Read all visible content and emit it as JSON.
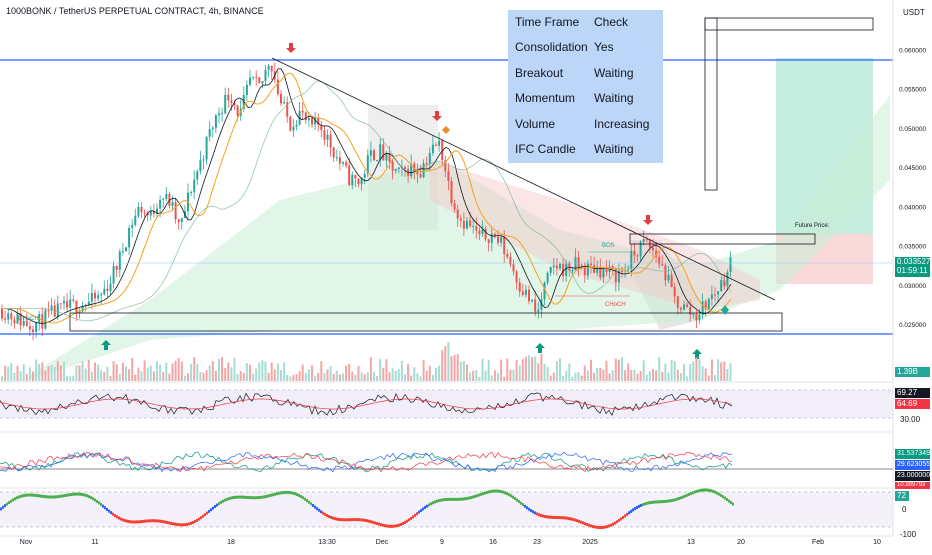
{
  "chart_title": "1000BONK / TetherUS PERPETUAL CONTRACT, 4h, BINANCE",
  "currency": "USDT",
  "chart_data": {
    "type": "candlestick",
    "symbol": "1000BONK / TetherUS PERPETUAL CONTRACT",
    "interval": "4h",
    "exchange": "BINANCE",
    "price_ticks": [
      "0.060000",
      "0.055000",
      "0.050000",
      "0.045000",
      "0.040000",
      "0.035000",
      "0.030000",
      "0.025000"
    ],
    "price_range": [
      0.0235,
      0.0635
    ],
    "time_labels": [
      "Nov",
      "11",
      "18",
      "13:30",
      "Dec",
      "9",
      "16",
      "23",
      "2025",
      "13",
      "20",
      "Feb",
      "10"
    ],
    "last_price": "0.033527",
    "countdown": "01:59:11",
    "price_path": [
      [
        0,
        0.027
      ],
      [
        10,
        0.0262
      ],
      [
        20,
        0.0255
      ],
      [
        30,
        0.025
      ],
      [
        40,
        0.0253
      ],
      [
        50,
        0.0262
      ],
      [
        60,
        0.0268
      ],
      [
        70,
        0.0272
      ],
      [
        80,
        0.0275
      ],
      [
        90,
        0.0278
      ],
      [
        100,
        0.0285
      ],
      [
        110,
        0.0305
      ],
      [
        120,
        0.0335
      ],
      [
        130,
        0.0375
      ],
      [
        140,
        0.04
      ],
      [
        150,
        0.0385
      ],
      [
        160,
        0.0415
      ],
      [
        170,
        0.0405
      ],
      [
        180,
        0.037
      ],
      [
        190,
        0.042
      ],
      [
        200,
        0.0455
      ],
      [
        210,
        0.0495
      ],
      [
        220,
        0.0525
      ],
      [
        230,
        0.0545
      ],
      [
        240,
        0.0515
      ],
      [
        250,
        0.056
      ],
      [
        260,
        0.055
      ],
      [
        270,
        0.059
      ],
      [
        280,
        0.0535
      ],
      [
        290,
        0.0505
      ],
      [
        300,
        0.052
      ],
      [
        310,
        0.05
      ],
      [
        320,
        0.0505
      ],
      [
        330,
        0.048
      ],
      [
        340,
        0.0455
      ],
      [
        350,
        0.0435
      ],
      [
        360,
        0.043
      ],
      [
        370,
        0.0465
      ],
      [
        380,
        0.047
      ],
      [
        390,
        0.045
      ],
      [
        400,
        0.044
      ],
      [
        410,
        0.045
      ],
      [
        420,
        0.0445
      ],
      [
        430,
        0.047
      ],
      [
        440,
        0.048
      ],
      [
        450,
        0.042
      ],
      [
        460,
        0.0385
      ],
      [
        470,
        0.0375
      ],
      [
        480,
        0.036
      ],
      [
        490,
        0.0365
      ],
      [
        500,
        0.0355
      ],
      [
        510,
        0.033
      ],
      [
        520,
        0.03
      ],
      [
        530,
        0.028
      ],
      [
        537,
        0.026
      ],
      [
        545,
        0.03
      ],
      [
        555,
        0.0325
      ],
      [
        565,
        0.032
      ],
      [
        575,
        0.0325
      ],
      [
        585,
        0.032
      ],
      [
        595,
        0.0322
      ],
      [
        605,
        0.0318
      ],
      [
        615,
        0.0312
      ],
      [
        625,
        0.032
      ],
      [
        635,
        0.034
      ],
      [
        645,
        0.0355
      ],
      [
        655,
        0.034
      ],
      [
        665,
        0.0315
      ],
      [
        675,
        0.028
      ],
      [
        685,
        0.027
      ],
      [
        695,
        0.026
      ],
      [
        705,
        0.0275
      ],
      [
        715,
        0.029
      ],
      [
        725,
        0.031
      ],
      [
        733,
        0.0335
      ]
    ],
    "annotations": [
      "BOS",
      "CHoCH",
      "CHoCH",
      "Future Price:"
    ],
    "status_table": [
      {
        "label": "Time Frame",
        "value": "Check"
      },
      {
        "label": "Consolidation",
        "value": "Yes"
      },
      {
        "label": "Breakout",
        "value": "Waiting"
      },
      {
        "label": "Momentum",
        "value": "Waiting"
      },
      {
        "label": "Volume",
        "value": "Increasing"
      },
      {
        "label": "IFC Candle",
        "value": "Waiting"
      }
    ],
    "indicators": {
      "volume_label": "1.39B",
      "rsi": {
        "value_a": "69.27",
        "value_b": "64.69",
        "level": "30.00"
      },
      "dmi": {
        "plus": "31.537349",
        "minus": "29.623055",
        "level": "23.000000",
        "adx": "10.989793"
      },
      "oscillator": {
        "value": "72",
        "zero": "0",
        "lower": "-100"
      }
    }
  },
  "colors": {
    "bull": "#26a69a",
    "bear": "#ef5350",
    "accent_blue": "#2962ff",
    "ma_fast": "#131722",
    "ma_slow": "#f7a21b",
    "last_price_tag": "#089981",
    "volume_tag": "#26a69a",
    "rsi_tag_a": "#131722",
    "rsi_tag_b": "#f23645"
  }
}
